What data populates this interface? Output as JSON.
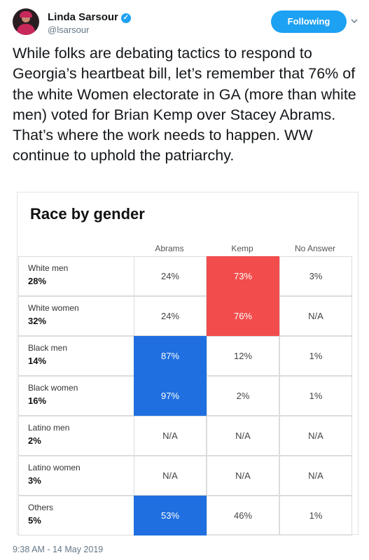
{
  "user": {
    "name": "Linda Sarsour",
    "handle": "@lsarsour",
    "verified_glyph": "✓",
    "follow_label": "Following",
    "menu_icon": "chevron-down-icon"
  },
  "tweet": {
    "text": "While folks are debating tactics to respond to Georgia’s heartbeat bill, let’s remember that 76% of the white Women electorate in GA (more than white men) voted for Brian Kemp over Stacey Abrams. That’s where the work needs to happen. WW continue to uphold the patriarchy.",
    "timestamp": "9:38 AM - 14 May 2019"
  },
  "card": {
    "title": "Race by gender",
    "columns": [
      "Abrams",
      "Kemp",
      "No Answer"
    ],
    "rows": [
      {
        "group": "White men",
        "share": "28%",
        "values": [
          "24%",
          "73%",
          "3%"
        ],
        "highlight": [
          null,
          "red",
          null
        ]
      },
      {
        "group": "White women",
        "share": "32%",
        "values": [
          "24%",
          "76%",
          "N/A"
        ],
        "highlight": [
          null,
          "red",
          null
        ]
      },
      {
        "group": "Black men",
        "share": "14%",
        "values": [
          "87%",
          "12%",
          "1%"
        ],
        "highlight": [
          "blue",
          null,
          null
        ]
      },
      {
        "group": "Black women",
        "share": "16%",
        "values": [
          "97%",
          "2%",
          "1%"
        ],
        "highlight": [
          "blue",
          null,
          null
        ]
      },
      {
        "group": "Latino men",
        "share": "2%",
        "values": [
          "N/A",
          "N/A",
          "N/A"
        ],
        "highlight": [
          null,
          null,
          null
        ]
      },
      {
        "group": "Latino women",
        "share": "3%",
        "values": [
          "N/A",
          "N/A",
          "N/A"
        ],
        "highlight": [
          null,
          null,
          null
        ]
      },
      {
        "group": "Others",
        "share": "5%",
        "values": [
          "53%",
          "46%",
          "1%"
        ],
        "highlight": [
          "blue",
          null,
          null
        ]
      }
    ],
    "colors": {
      "red": "#f24c4c",
      "blue": "#1f6fe0"
    }
  }
}
